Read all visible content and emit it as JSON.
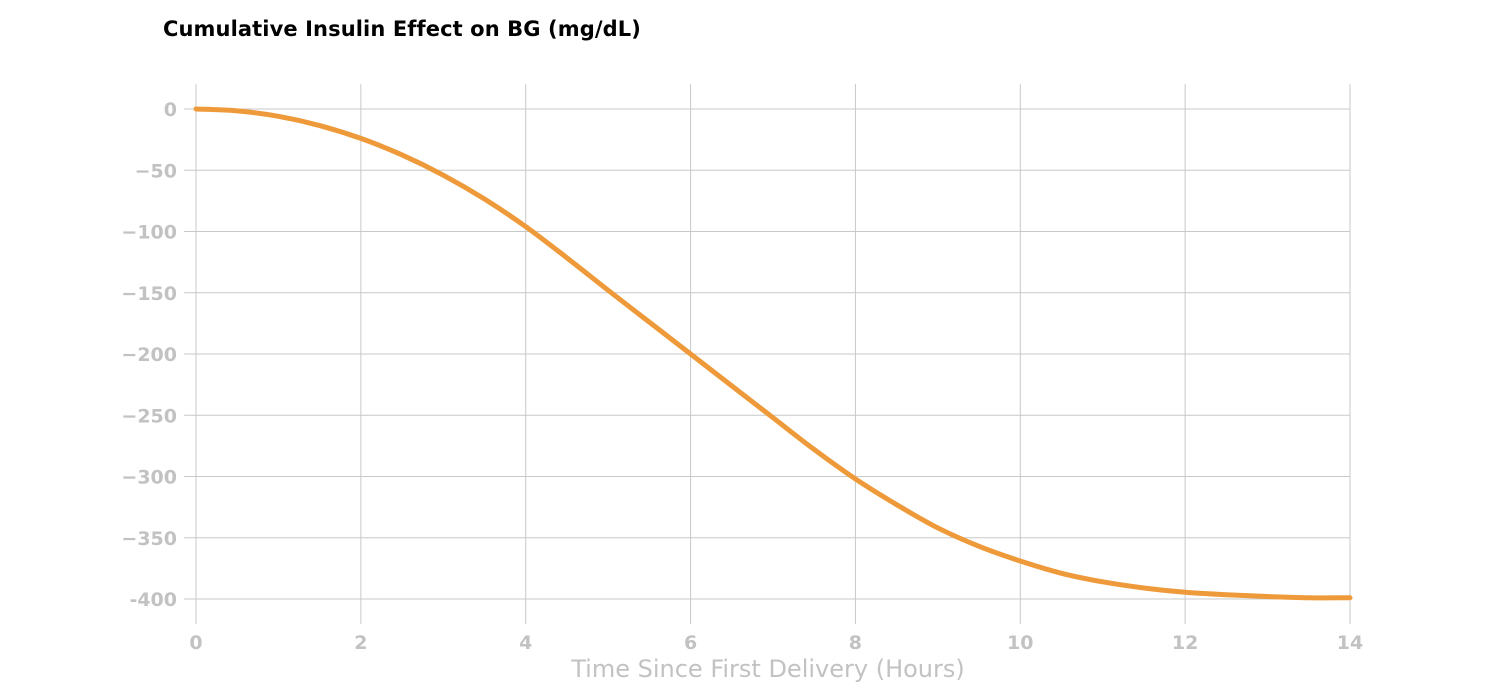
{
  "chart_data": {
    "type": "line",
    "title": "Cumulative Insulin Effect on BG (mg/dL)",
    "xlabel": "Time Since First Delivery (Hours)",
    "ylabel": "",
    "xlim": [
      0,
      14
    ],
    "ylim": [
      -400,
      0
    ],
    "x_ticks": [
      0,
      2,
      4,
      6,
      8,
      10,
      12,
      14
    ],
    "y_ticks": [
      0,
      -50,
      -100,
      -150,
      -200,
      -250,
      -300,
      -350,
      -400
    ],
    "y_tick_labels": [
      "0",
      "−50",
      "−100",
      "−150",
      "−200",
      "−250",
      "−300",
      "−350",
      "-400"
    ],
    "grid": true,
    "series": [
      {
        "color": "#ee9a3a",
        "x": [
          0,
          0.5,
          1,
          1.5,
          2,
          2.5,
          3,
          3.5,
          4,
          4.5,
          5,
          5.5,
          6,
          6.5,
          7,
          7.5,
          8,
          8.5,
          9,
          9.5,
          10,
          10.5,
          11,
          11.5,
          12,
          12.5,
          13,
          13.5,
          14
        ],
        "y": [
          0,
          -1.5,
          -6,
          -13.5,
          -24,
          -37.5,
          -54,
          -73.5,
          -96,
          -121.5,
          -148,
          -174,
          -200,
          -226,
          -252,
          -278,
          -302,
          -323,
          -342,
          -357,
          -369,
          -379,
          -386,
          -391,
          -394.5,
          -396.5,
          -398,
          -399,
          -399
        ]
      }
    ]
  }
}
